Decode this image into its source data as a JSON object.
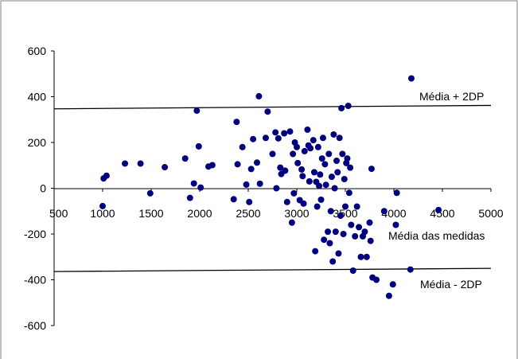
{
  "chart_data": {
    "type": "scatter",
    "title": "",
    "xlabel": "",
    "ylabel": "",
    "xlim": [
      500,
      5000
    ],
    "ylim": [
      -600,
      600
    ],
    "xticks": [
      500,
      1000,
      1500,
      2000,
      2500,
      3000,
      3500,
      4000,
      4500,
      5000
    ],
    "yticks": [
      -600,
      -400,
      -200,
      0,
      200,
      400,
      600
    ],
    "x_tick_labels": [
      "500",
      "1000",
      "1500",
      "2000",
      "2500",
      "3000",
      "3500",
      "4000",
      "4500",
      "5000"
    ],
    "y_tick_labels": [
      "-600",
      "-400",
      "-200",
      "0",
      "200",
      "400",
      "600"
    ],
    "grid": false,
    "point_color": "#00007f",
    "line_color": "#000000",
    "reference_lines": [
      {
        "label": "Média + 2DP",
        "x": [
          500,
          5000
        ],
        "y": [
          347,
          362
        ]
      },
      {
        "label": "Média - 2DP",
        "x": [
          500,
          5000
        ],
        "y": [
          -364,
          -350
        ]
      }
    ],
    "annotation_mean": "Média das medidas",
    "points": [
      {
        "x": 1000,
        "y": -78
      },
      {
        "x": 1010,
        "y": 43
      },
      {
        "x": 1040,
        "y": 55
      },
      {
        "x": 1230,
        "y": 108
      },
      {
        "x": 1390,
        "y": 108
      },
      {
        "x": 1490,
        "y": -22
      },
      {
        "x": 1640,
        "y": 92
      },
      {
        "x": 1850,
        "y": 130
      },
      {
        "x": 1900,
        "y": -42
      },
      {
        "x": 1940,
        "y": 21
      },
      {
        "x": 1970,
        "y": 339
      },
      {
        "x": 1990,
        "y": 183
      },
      {
        "x": 2010,
        "y": 3
      },
      {
        "x": 2090,
        "y": 95
      },
      {
        "x": 2130,
        "y": 101
      },
      {
        "x": 2350,
        "y": -48
      },
      {
        "x": 2380,
        "y": 290
      },
      {
        "x": 2390,
        "y": 105
      },
      {
        "x": 2440,
        "y": 180
      },
      {
        "x": 2480,
        "y": 16
      },
      {
        "x": 2510,
        "y": -60
      },
      {
        "x": 2530,
        "y": 84
      },
      {
        "x": 2550,
        "y": 215
      },
      {
        "x": 2590,
        "y": 112
      },
      {
        "x": 2610,
        "y": 402
      },
      {
        "x": 2620,
        "y": 20
      },
      {
        "x": 2680,
        "y": 220
      },
      {
        "x": 2700,
        "y": 335
      },
      {
        "x": 2750,
        "y": 150
      },
      {
        "x": 2780,
        "y": 244
      },
      {
        "x": 2790,
        "y": 0
      },
      {
        "x": 2810,
        "y": 218
      },
      {
        "x": 2830,
        "y": 90
      },
      {
        "x": 2840,
        "y": 62
      },
      {
        "x": 2870,
        "y": 240
      },
      {
        "x": 2880,
        "y": 77
      },
      {
        "x": 2900,
        "y": -60
      },
      {
        "x": 2930,
        "y": 248
      },
      {
        "x": 2950,
        "y": -150
      },
      {
        "x": 2960,
        "y": 150
      },
      {
        "x": 2970,
        "y": -22
      },
      {
        "x": 2980,
        "y": 200
      },
      {
        "x": 3000,
        "y": 180
      },
      {
        "x": 3010,
        "y": 110
      },
      {
        "x": 3030,
        "y": -52
      },
      {
        "x": 3050,
        "y": 82
      },
      {
        "x": 3060,
        "y": 53
      },
      {
        "x": 3070,
        "y": -67
      },
      {
        "x": 3080,
        "y": 162
      },
      {
        "x": 3110,
        "y": 256
      },
      {
        "x": 3120,
        "y": 187
      },
      {
        "x": 3130,
        "y": 30
      },
      {
        "x": 3140,
        "y": 175
      },
      {
        "x": 3170,
        "y": 210
      },
      {
        "x": 3180,
        "y": 70
      },
      {
        "x": 3190,
        "y": -275
      },
      {
        "x": 3200,
        "y": 28
      },
      {
        "x": 3210,
        "y": -80
      },
      {
        "x": 3220,
        "y": 180
      },
      {
        "x": 3230,
        "y": 10
      },
      {
        "x": 3240,
        "y": 60
      },
      {
        "x": 3250,
        "y": -50
      },
      {
        "x": 3260,
        "y": 130
      },
      {
        "x": 3270,
        "y": 220
      },
      {
        "x": 3280,
        "y": -225
      },
      {
        "x": 3290,
        "y": 105
      },
      {
        "x": 3300,
        "y": 15
      },
      {
        "x": 3320,
        "y": -190
      },
      {
        "x": 3330,
        "y": 150
      },
      {
        "x": 3340,
        "y": -240
      },
      {
        "x": 3350,
        "y": -100
      },
      {
        "x": 3360,
        "y": 50
      },
      {
        "x": 3370,
        "y": -320
      },
      {
        "x": 3380,
        "y": 235
      },
      {
        "x": 3390,
        "y": 0
      },
      {
        "x": 3400,
        "y": -190
      },
      {
        "x": 3410,
        "y": 120
      },
      {
        "x": 3420,
        "y": 70
      },
      {
        "x": 3430,
        "y": -285
      },
      {
        "x": 3440,
        "y": 220
      },
      {
        "x": 3450,
        "y": -120
      },
      {
        "x": 3460,
        "y": 350
      },
      {
        "x": 3470,
        "y": 150
      },
      {
        "x": 3480,
        "y": -200
      },
      {
        "x": 3490,
        "y": 40
      },
      {
        "x": 3500,
        "y": -80
      },
      {
        "x": 3510,
        "y": 110
      },
      {
        "x": 3520,
        "y": 130
      },
      {
        "x": 3530,
        "y": 360
      },
      {
        "x": 3540,
        "y": -20
      },
      {
        "x": 3550,
        "y": 90
      },
      {
        "x": 3560,
        "y": -160
      },
      {
        "x": 3580,
        "y": -360
      },
      {
        "x": 3600,
        "y": -210
      },
      {
        "x": 3620,
        "y": -80
      },
      {
        "x": 3640,
        "y": -170
      },
      {
        "x": 3660,
        "y": -300
      },
      {
        "x": 3680,
        "y": -210
      },
      {
        "x": 3700,
        "y": -190
      },
      {
        "x": 3720,
        "y": -300
      },
      {
        "x": 3750,
        "y": -150
      },
      {
        "x": 3760,
        "y": -230
      },
      {
        "x": 3770,
        "y": 85
      },
      {
        "x": 3780,
        "y": -390
      },
      {
        "x": 3820,
        "y": -400
      },
      {
        "x": 3900,
        "y": -100
      },
      {
        "x": 3950,
        "y": -470
      },
      {
        "x": 3990,
        "y": -420
      },
      {
        "x": 4020,
        "y": -160
      },
      {
        "x": 4030,
        "y": -20
      },
      {
        "x": 4170,
        "y": -355
      },
      {
        "x": 4180,
        "y": 480
      },
      {
        "x": 4460,
        "y": -95
      }
    ]
  }
}
